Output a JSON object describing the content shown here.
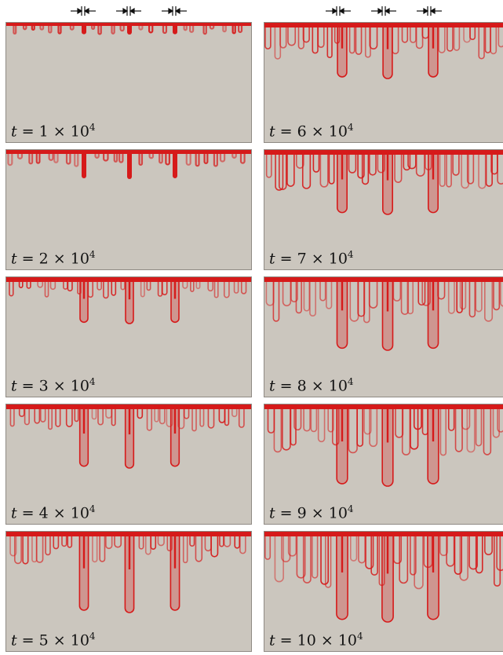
{
  "label_variable": "t",
  "label_eq": "=",
  "label_times": "×",
  "label_base": "10",
  "label_exponent": "4",
  "colors": {
    "background": "#cbc6be",
    "finger": "#d61a1a",
    "border": "#8f8a84"
  },
  "icons": [
    "converge-arrows-icon"
  ],
  "panels": [
    {
      "column": "left",
      "multiplier": "1",
      "t": 10000
    },
    {
      "column": "left",
      "multiplier": "2",
      "t": 20000
    },
    {
      "column": "left",
      "multiplier": "3",
      "t": 30000
    },
    {
      "column": "left",
      "multiplier": "4",
      "t": 40000
    },
    {
      "column": "left",
      "multiplier": "5",
      "t": 50000
    },
    {
      "column": "right",
      "multiplier": "6",
      "t": 60000
    },
    {
      "column": "right",
      "multiplier": "7",
      "t": 70000
    },
    {
      "column": "right",
      "multiplier": "8",
      "t": 80000
    },
    {
      "column": "right",
      "multiplier": "9",
      "t": 90000
    },
    {
      "column": "right",
      "multiplier": "10",
      "t": 100000
    }
  ]
}
